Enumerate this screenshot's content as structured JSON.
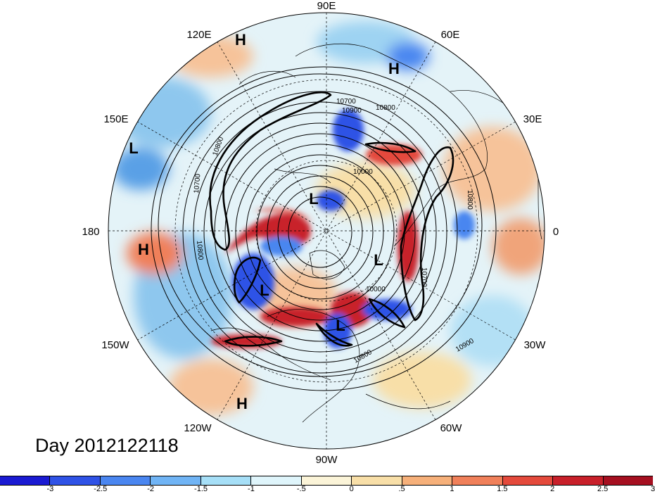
{
  "map": {
    "longitude_labels": [
      "90E",
      "60E",
      "30E",
      "0",
      "30W",
      "60W",
      "90W",
      "120W",
      "150W",
      "180",
      "150E",
      "120E"
    ],
    "pressure_systems": [
      "H",
      "H",
      "L",
      "H",
      "L",
      "L",
      "L",
      "L",
      "H"
    ],
    "contour_labels": [
      "10700",
      "10800",
      "10900",
      "10000",
      "10800",
      "10700",
      "10800",
      "10700",
      "10800",
      "10000",
      "10900",
      "10800"
    ],
    "colors": {
      "land_outline": "#000000",
      "contour": "#000000"
    }
  },
  "caption": "Day 2012122118",
  "colorbar": {
    "colors": [
      "#1a1ad2",
      "#2f52e6",
      "#4a86f0",
      "#70b4f5",
      "#a6dff7",
      "#dff5fb",
      "#fbf4d8",
      "#f8dfa8",
      "#f6b07a",
      "#f0805a",
      "#e44a3c",
      "#c8202a",
      "#a50f20"
    ],
    "tick_labels": [
      "-3",
      "-2.5",
      "-2",
      "-1.5",
      "-1",
      "-.5",
      "0",
      ".5",
      "1",
      "1.5",
      "2",
      "2.5",
      "3"
    ]
  }
}
